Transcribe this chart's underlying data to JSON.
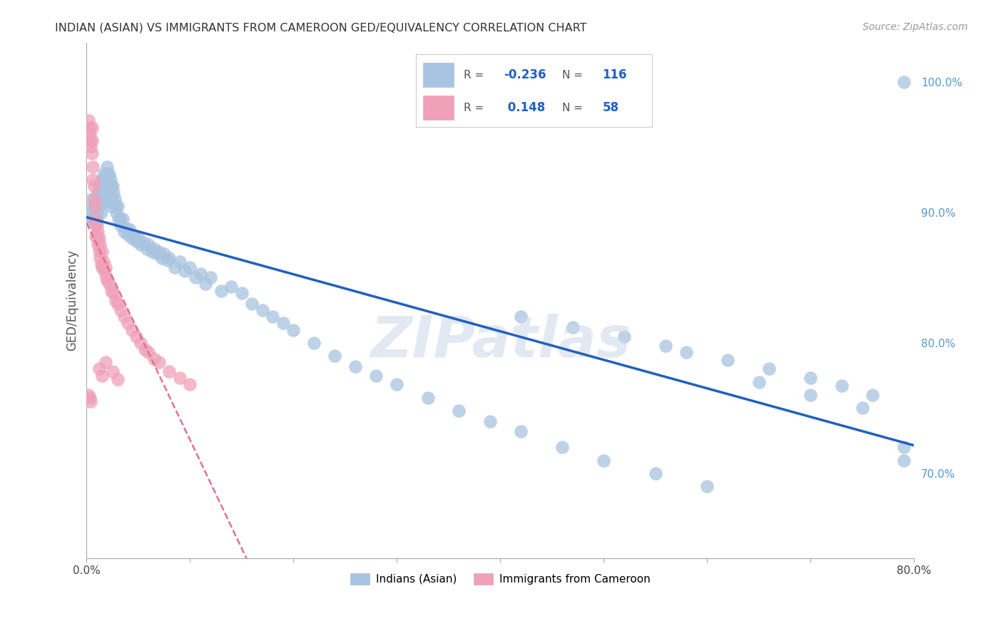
{
  "title": "INDIAN (ASIAN) VS IMMIGRANTS FROM CAMEROON GED/EQUIVALENCY CORRELATION CHART",
  "source": "Source: ZipAtlas.com",
  "ylabel": "GED/Equivalency",
  "xlim": [
    0.0,
    0.8
  ],
  "ylim": [
    0.635,
    1.03
  ],
  "xtick_positions": [
    0.0,
    0.1,
    0.2,
    0.3,
    0.4,
    0.5,
    0.6,
    0.7,
    0.8
  ],
  "xticklabels": [
    "0.0%",
    "",
    "",
    "",
    "",
    "",
    "",
    "",
    "80.0%"
  ],
  "ytick_positions": [
    0.7,
    0.8,
    0.9,
    1.0
  ],
  "ytick_labels": [
    "70.0%",
    "80.0%",
    "90.0%",
    "100.0%"
  ],
  "blue_color": "#a8c4e0",
  "pink_color": "#f0a0b8",
  "blue_line_color": "#2060c0",
  "pink_line_color": "#e07090",
  "blue_R": -0.236,
  "blue_N": 116,
  "pink_R": 0.148,
  "pink_N": 58,
  "watermark": "ZIPatlas",
  "blue_scatter_x": [
    0.003,
    0.004,
    0.005,
    0.005,
    0.006,
    0.007,
    0.008,
    0.008,
    0.009,
    0.009,
    0.01,
    0.01,
    0.011,
    0.011,
    0.012,
    0.012,
    0.013,
    0.013,
    0.014,
    0.014,
    0.015,
    0.015,
    0.016,
    0.016,
    0.017,
    0.017,
    0.018,
    0.018,
    0.019,
    0.019,
    0.02,
    0.02,
    0.021,
    0.021,
    0.022,
    0.022,
    0.023,
    0.023,
    0.024,
    0.024,
    0.025,
    0.025,
    0.026,
    0.027,
    0.028,
    0.029,
    0.03,
    0.031,
    0.032,
    0.033,
    0.035,
    0.036,
    0.038,
    0.04,
    0.042,
    0.044,
    0.046,
    0.048,
    0.05,
    0.052,
    0.055,
    0.058,
    0.06,
    0.063,
    0.065,
    0.068,
    0.07,
    0.073,
    0.075,
    0.078,
    0.08,
    0.085,
    0.09,
    0.095,
    0.1,
    0.105,
    0.11,
    0.115,
    0.12,
    0.13,
    0.14,
    0.15,
    0.16,
    0.17,
    0.18,
    0.19,
    0.2,
    0.22,
    0.24,
    0.26,
    0.28,
    0.3,
    0.33,
    0.36,
    0.39,
    0.42,
    0.46,
    0.5,
    0.55,
    0.6,
    0.65,
    0.7,
    0.75,
    0.79,
    0.79,
    0.79,
    0.42,
    0.47,
    0.52,
    0.56,
    0.58,
    0.62,
    0.66,
    0.7,
    0.73,
    0.76
  ],
  "blue_scatter_y": [
    0.895,
    0.9,
    0.91,
    0.895,
    0.905,
    0.895,
    0.905,
    0.895,
    0.9,
    0.89,
    0.91,
    0.895,
    0.915,
    0.9,
    0.92,
    0.905,
    0.92,
    0.908,
    0.918,
    0.9,
    0.925,
    0.91,
    0.925,
    0.912,
    0.93,
    0.915,
    0.928,
    0.913,
    0.925,
    0.908,
    0.935,
    0.92,
    0.93,
    0.915,
    0.928,
    0.912,
    0.925,
    0.91,
    0.92,
    0.905,
    0.92,
    0.908,
    0.915,
    0.91,
    0.905,
    0.9,
    0.905,
    0.895,
    0.895,
    0.89,
    0.895,
    0.885,
    0.888,
    0.883,
    0.887,
    0.88,
    0.882,
    0.878,
    0.88,
    0.875,
    0.877,
    0.872,
    0.875,
    0.87,
    0.872,
    0.868,
    0.87,
    0.865,
    0.868,
    0.863,
    0.865,
    0.858,
    0.862,
    0.855,
    0.858,
    0.85,
    0.853,
    0.845,
    0.85,
    0.84,
    0.843,
    0.838,
    0.83,
    0.825,
    0.82,
    0.815,
    0.81,
    0.8,
    0.79,
    0.782,
    0.775,
    0.768,
    0.758,
    0.748,
    0.74,
    0.732,
    0.72,
    0.71,
    0.7,
    0.69,
    0.77,
    0.76,
    0.75,
    0.72,
    0.71,
    1.0,
    0.82,
    0.812,
    0.805,
    0.798,
    0.793,
    0.787,
    0.78,
    0.773,
    0.767,
    0.76
  ],
  "pink_scatter_x": [
    0.002,
    0.003,
    0.003,
    0.004,
    0.004,
    0.005,
    0.005,
    0.005,
    0.006,
    0.006,
    0.007,
    0.007,
    0.008,
    0.008,
    0.009,
    0.009,
    0.01,
    0.01,
    0.011,
    0.011,
    0.012,
    0.012,
    0.013,
    0.013,
    0.014,
    0.015,
    0.015,
    0.016,
    0.017,
    0.018,
    0.019,
    0.02,
    0.022,
    0.024,
    0.026,
    0.028,
    0.03,
    0.033,
    0.036,
    0.04,
    0.044,
    0.048,
    0.052,
    0.056,
    0.06,
    0.065,
    0.07,
    0.08,
    0.09,
    0.1,
    0.002,
    0.003,
    0.004,
    0.012,
    0.015,
    0.018,
    0.025,
    0.03
  ],
  "pink_scatter_y": [
    0.97,
    0.965,
    0.96,
    0.955,
    0.95,
    0.965,
    0.955,
    0.945,
    0.935,
    0.925,
    0.92,
    0.91,
    0.905,
    0.895,
    0.892,
    0.882,
    0.89,
    0.88,
    0.885,
    0.875,
    0.88,
    0.87,
    0.875,
    0.865,
    0.86,
    0.87,
    0.858,
    0.862,
    0.855,
    0.858,
    0.85,
    0.848,
    0.845,
    0.84,
    0.838,
    0.832,
    0.83,
    0.825,
    0.82,
    0.815,
    0.81,
    0.805,
    0.8,
    0.795,
    0.793,
    0.788,
    0.785,
    0.778,
    0.773,
    0.768,
    0.76,
    0.758,
    0.755,
    0.78,
    0.775,
    0.785,
    0.778,
    0.772
  ]
}
